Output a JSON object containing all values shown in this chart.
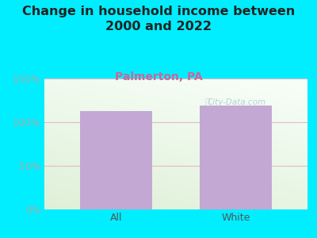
{
  "title": "Change in household income between\n2000 and 2022",
  "subtitle": "Palmerton, PA",
  "categories": [
    "All",
    "White"
  ],
  "values": [
    113,
    119
  ],
  "bar_color": "#c4a8d4",
  "title_fontsize": 11.5,
  "subtitle_fontsize": 10,
  "subtitle_color": "#cc6699",
  "tick_label_color": "#aaaaaa",
  "background_outer": "#00eeff",
  "plot_bg_top": "#f5faf5",
  "plot_bg_bottom": "#dff0d8",
  "ylim": [
    0,
    150
  ],
  "yticks": [
    0,
    50,
    100,
    150
  ],
  "ytick_labels": [
    "0%",
    "50%",
    "100%",
    "150%"
  ],
  "grid_color": "#e8b8c8",
  "watermark": "City-Data.com"
}
